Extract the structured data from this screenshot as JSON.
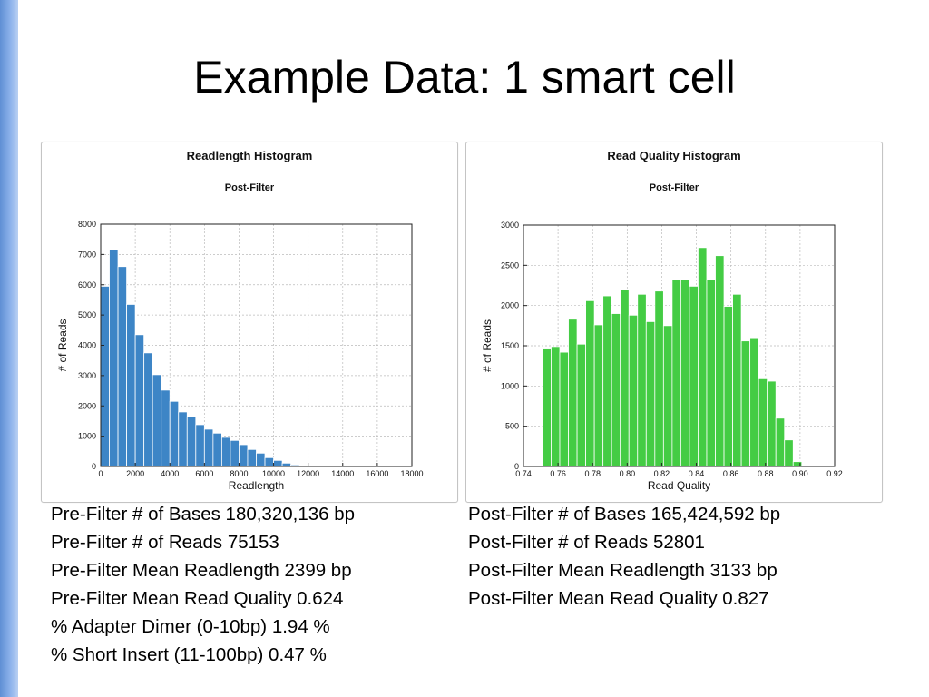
{
  "slide": {
    "title": "Example Data: 1 smart cell"
  },
  "chart_data": [
    {
      "type": "bar",
      "title": "Readlength Histogram",
      "subtitle": "Post-Filter",
      "xlabel": "Readlength",
      "ylabel": "# of Reads",
      "xlim": [
        0,
        18000
      ],
      "ylim": [
        0,
        8000
      ],
      "xticks": [
        0,
        2000,
        4000,
        6000,
        8000,
        10000,
        12000,
        14000,
        16000,
        18000
      ],
      "yticks": [
        0,
        1000,
        2000,
        3000,
        4000,
        5000,
        6000,
        7000,
        8000
      ],
      "grid": true,
      "color": "#3d85c6",
      "bin_width": 500,
      "bin_start": 0,
      "values": [
        5950,
        7150,
        6600,
        5350,
        4350,
        3750,
        3030,
        2520,
        2150,
        1800,
        1630,
        1380,
        1230,
        1100,
        960,
        860,
        720,
        560,
        440,
        290,
        200,
        110,
        50
      ]
    },
    {
      "type": "bar",
      "title": "Read Quality Histogram",
      "subtitle": "Post-Filter",
      "xlabel": "Read Quality",
      "ylabel": "# of Reads",
      "xlim": [
        0.74,
        0.92
      ],
      "ylim": [
        0,
        3000
      ],
      "xticks": [
        "0.74",
        "0.76",
        "0.78",
        "0.80",
        "0.82",
        "0.84",
        "0.86",
        "0.88",
        "0.90",
        "0.92"
      ],
      "ytick_values": [
        0,
        500,
        1000,
        1500,
        2000,
        2500,
        3000
      ],
      "grid": true,
      "color": "#44cc44",
      "bin_width": 0.005,
      "bin_start": 0.751,
      "values": [
        1460,
        1490,
        1420,
        1830,
        1520,
        2060,
        1760,
        2120,
        1900,
        2200,
        1880,
        2140,
        1800,
        2180,
        1750,
        2320,
        2320,
        2240,
        2720,
        2320,
        2620,
        1990,
        2140,
        1560,
        1600,
        1090,
        1060,
        600,
        330,
        60
      ]
    }
  ],
  "stats_left": [
    "Pre-Filter # of Bases 180,320,136 bp",
    "Pre-Filter # of Reads 75153",
    "Pre-Filter Mean Readlength 2399 bp",
    "Pre-Filter Mean Read Quality 0.624",
    "% Adapter Dimer (0-10bp) 1.94 %",
    "% Short Insert (11-100bp) 0.47 %"
  ],
  "stats_right": [
    "Post-Filter # of Bases 165,424,592 bp",
    "Post-Filter # of Reads 52801",
    "Post-Filter Mean Readlength 3133 bp",
    "Post-Filter Mean Read Quality 0.827"
  ]
}
